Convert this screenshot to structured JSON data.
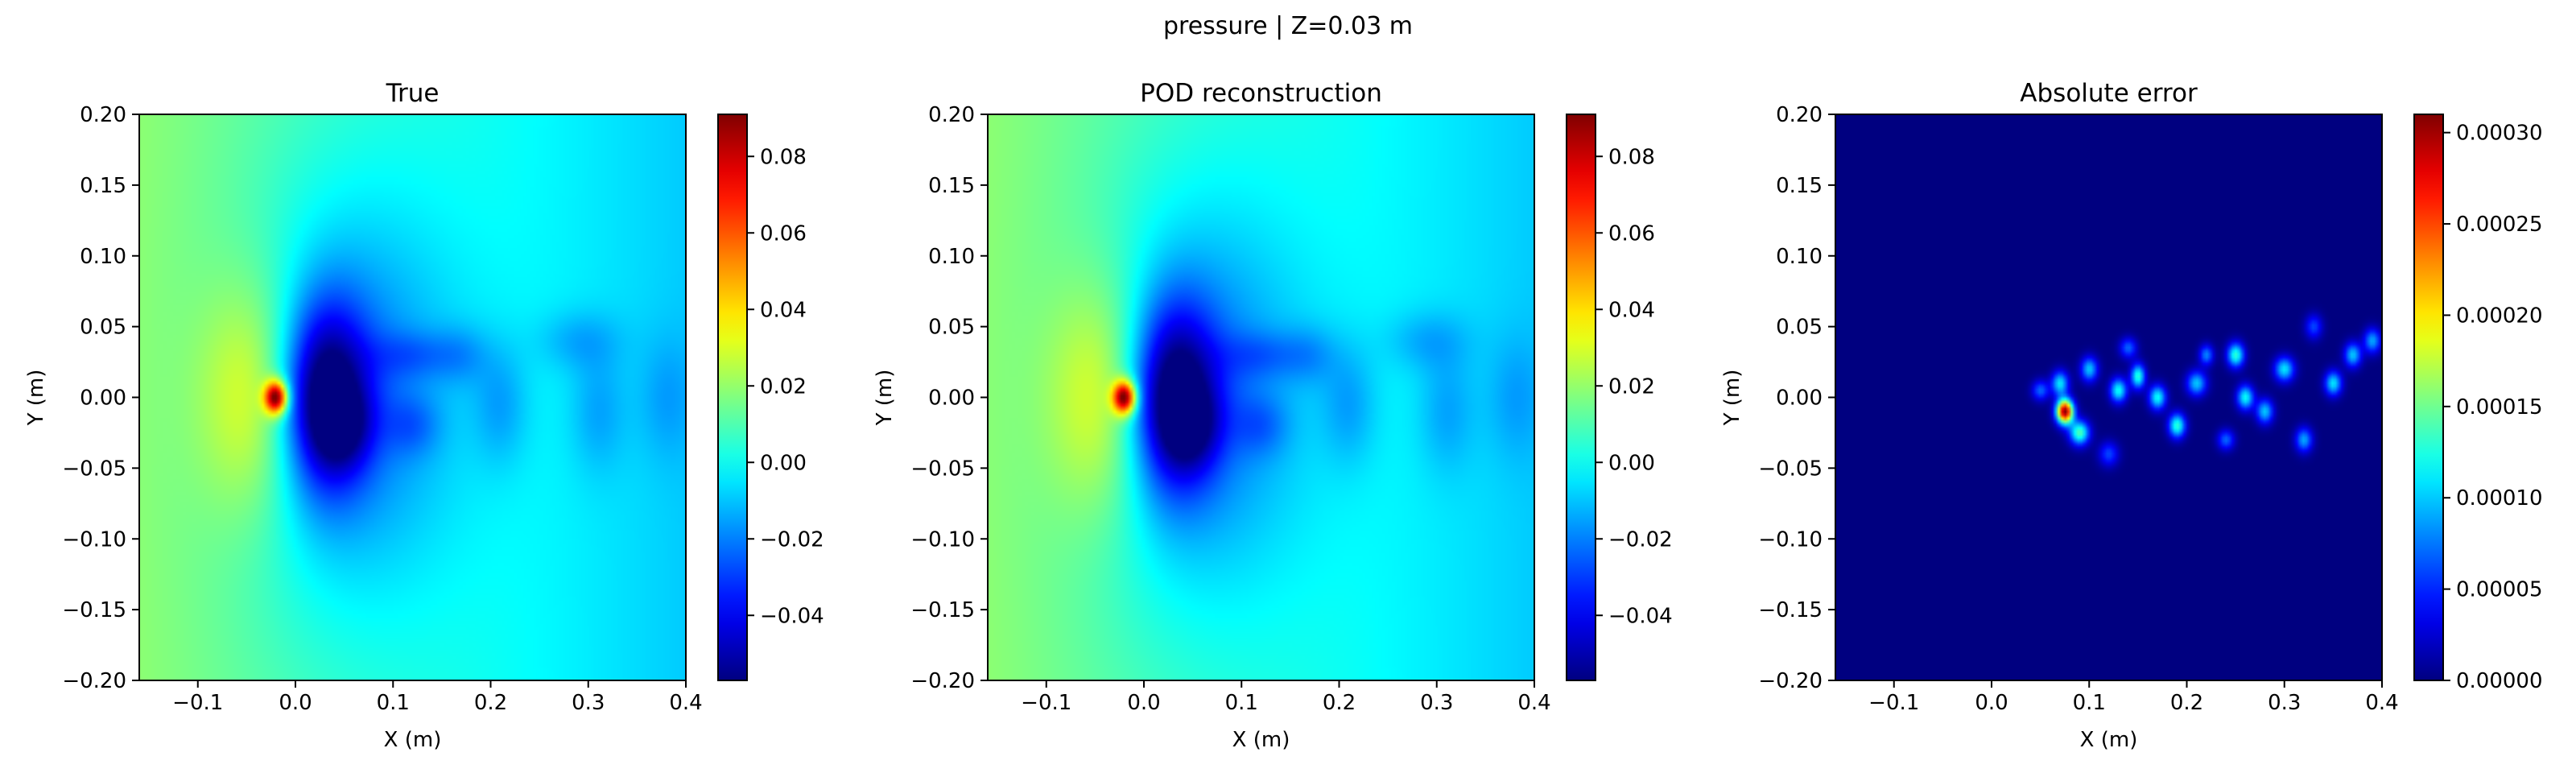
{
  "figure": {
    "title": "pressure | Z=0.03 m"
  },
  "chart_data": [
    {
      "type": "heatmap",
      "title": "True",
      "xlabel": "X (m)",
      "ylabel": "Y (m)",
      "xlim": [
        -0.16,
        0.4
      ],
      "ylim": [
        -0.2,
        0.2
      ],
      "xticks": [
        -0.1,
        0.0,
        0.1,
        0.2,
        0.3,
        0.4
      ],
      "xtick_labels": [
        "−0.1",
        "0.0",
        "0.1",
        "0.2",
        "0.3",
        "0.4"
      ],
      "yticks": [
        0.2,
        0.15,
        0.1,
        0.05,
        0.0,
        -0.05,
        -0.1,
        -0.15,
        -0.2
      ],
      "ytick_labels": [
        "0.20",
        "0.15",
        "0.10",
        "0.05",
        "0.00",
        "−0.05",
        "−0.10",
        "−0.15",
        "−0.20"
      ],
      "colormap": "jet",
      "clim": [
        -0.057,
        0.091
      ],
      "colorbar_ticks": [
        0.08,
        0.06,
        0.04,
        0.02,
        0.0,
        -0.02,
        -0.04
      ],
      "colorbar_tick_labels": [
        "0.08",
        "0.06",
        "0.04",
        "0.02",
        "0.00",
        "−0.02",
        "−0.04"
      ],
      "field": "pressure"
    },
    {
      "type": "heatmap",
      "title": "POD reconstruction",
      "xlabel": "X (m)",
      "ylabel": "Y (m)",
      "xlim": [
        -0.16,
        0.4
      ],
      "ylim": [
        -0.2,
        0.2
      ],
      "xticks": [
        -0.1,
        0.0,
        0.1,
        0.2,
        0.3,
        0.4
      ],
      "xtick_labels": [
        "−0.1",
        "0.0",
        "0.1",
        "0.2",
        "0.3",
        "0.4"
      ],
      "yticks": [
        0.2,
        0.15,
        0.1,
        0.05,
        0.0,
        -0.05,
        -0.1,
        -0.15,
        -0.2
      ],
      "ytick_labels": [
        "0.20",
        "0.15",
        "0.10",
        "0.05",
        "0.00",
        "−0.05",
        "−0.10",
        "−0.15",
        "−0.20"
      ],
      "colormap": "jet",
      "clim": [
        -0.057,
        0.091
      ],
      "colorbar_ticks": [
        0.08,
        0.06,
        0.04,
        0.02,
        0.0,
        -0.02,
        -0.04
      ],
      "colorbar_tick_labels": [
        "0.08",
        "0.06",
        "0.04",
        "0.02",
        "0.00",
        "−0.02",
        "−0.04"
      ],
      "field": "pressure"
    },
    {
      "type": "heatmap",
      "title": "Absolute error",
      "xlabel": "X (m)",
      "ylabel": "Y (m)",
      "xlim": [
        -0.16,
        0.4
      ],
      "ylim": [
        -0.2,
        0.2
      ],
      "xticks": [
        -0.1,
        0.0,
        0.1,
        0.2,
        0.3,
        0.4
      ],
      "xtick_labels": [
        "−0.1",
        "0.0",
        "0.1",
        "0.2",
        "0.3",
        "0.4"
      ],
      "yticks": [
        0.2,
        0.15,
        0.1,
        0.05,
        0.0,
        -0.05,
        -0.1,
        -0.15,
        -0.2
      ],
      "ytick_labels": [
        "0.20",
        "0.15",
        "0.10",
        "0.05",
        "0.00",
        "−0.05",
        "−0.10",
        "−0.15",
        "−0.20"
      ],
      "colormap": "jet",
      "clim": [
        0.0,
        0.00031
      ],
      "colorbar_ticks": [
        0.0003,
        0.00025,
        0.0002,
        0.00015,
        0.0001,
        5e-05,
        0.0
      ],
      "colorbar_tick_labels": [
        "0.00030",
        "0.00025",
        "0.00020",
        "0.00015",
        "0.00010",
        "0.00005",
        "0.00000"
      ],
      "field": "error"
    }
  ]
}
